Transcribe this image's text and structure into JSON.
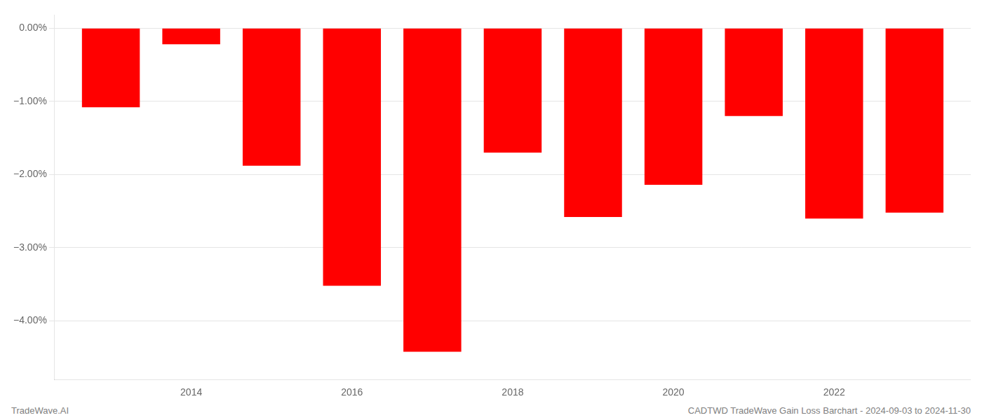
{
  "chart_data": {
    "type": "bar",
    "x": [
      2013,
      2014,
      2015,
      2016,
      2017,
      2018,
      2019,
      2020,
      2021,
      2022,
      2023
    ],
    "values": [
      -1.08,
      -0.22,
      -1.88,
      -3.52,
      -4.42,
      -1.7,
      -2.58,
      -2.14,
      -1.2,
      -2.6,
      -2.52
    ],
    "color": "#ff0000",
    "xlim": [
      2012.3,
      2023.7
    ],
    "xticks": [
      2014,
      2016,
      2018,
      2020,
      2022
    ],
    "ylim": [
      -4.8,
      0.18
    ],
    "yticks": [
      {
        "value": 0.0,
        "label": "0.00%"
      },
      {
        "value": -1.0,
        "label": "−1.00%"
      },
      {
        "value": -2.0,
        "label": "−2.00%"
      },
      {
        "value": -3.0,
        "label": "−3.00%"
      },
      {
        "value": -4.0,
        "label": "−4.00%"
      }
    ],
    "grid": "y",
    "annotations": [
      "TradeWave.AI",
      "CADTWD TradeWave Gain Loss Barchart - 2024-09-03 to 2024-11-30"
    ]
  }
}
